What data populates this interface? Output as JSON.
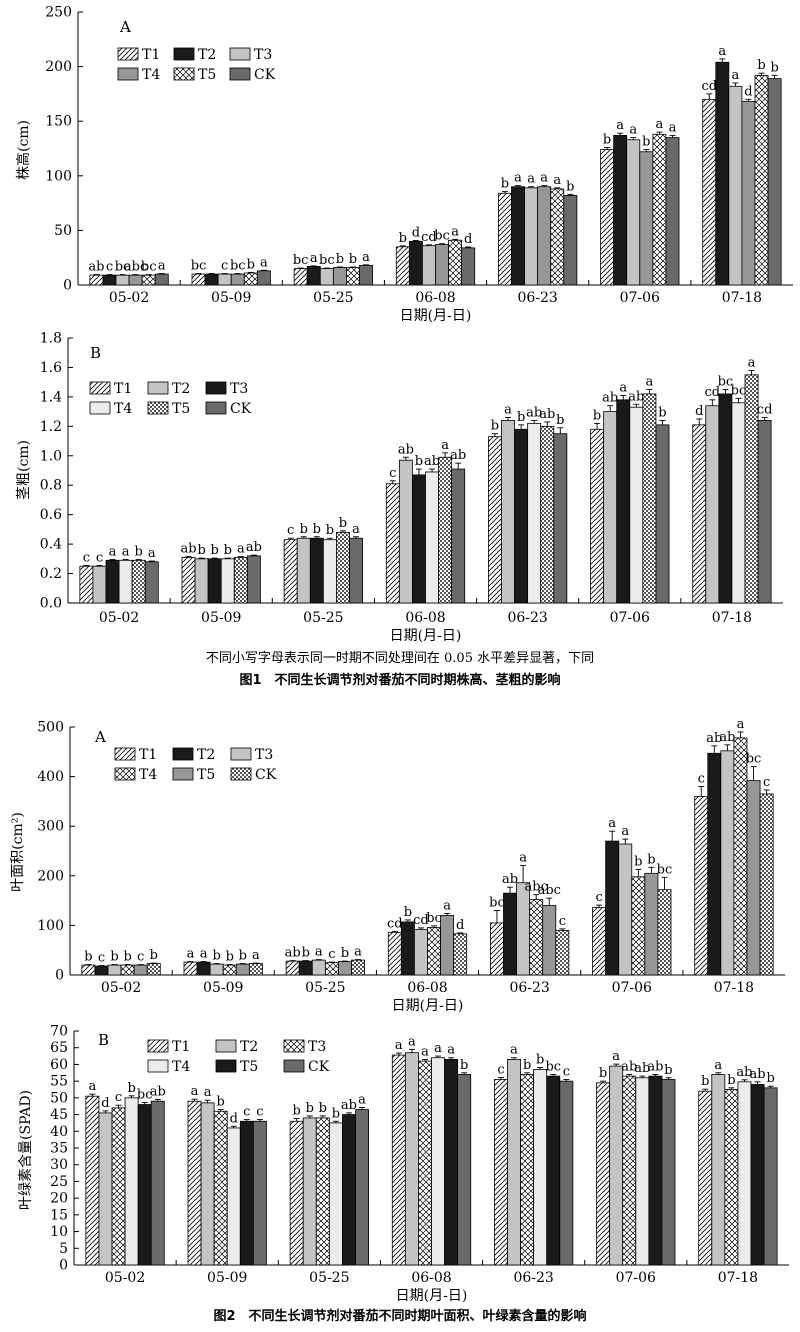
{
  "figure1": {
    "title": "图1　不同生长调节剂对番茄不同时期株高、茎粗的影响",
    "note": "不同小写字母表示同一时期不同处理间在 0.05 水平差异显著，下同"
  },
  "figure2": {
    "title": "图2　不同生长调节剂对番茄不同时期叶面积、叶绿素含量的影响"
  },
  "chart_data": [
    {
      "type": "bar",
      "panel": "A",
      "ylabel": "株高(cm)",
      "xlabel": "日期(月-日)",
      "categories": [
        "05-02",
        "05-09",
        "05-25",
        "06-08",
        "06-23",
        "07-06",
        "07-18"
      ],
      "ylim": [
        0,
        250
      ],
      "yticks": [
        0,
        50,
        100,
        150,
        200,
        250
      ],
      "legend_cols": 3,
      "series": [
        {
          "name": "T1",
          "pattern": "diag",
          "values": [
            9,
            10,
            15,
            35,
            84,
            124,
            170
          ],
          "errors": [
            0.5,
            0.5,
            0.5,
            0.8,
            1.5,
            2,
            5
          ],
          "letters": [
            "ab",
            "bc",
            "bc",
            "b",
            "b",
            "b",
            "cd"
          ]
        },
        {
          "name": "T2",
          "pattern": "black",
          "values": [
            9,
            10,
            17,
            40,
            90,
            137,
            204
          ],
          "errors": [
            0.5,
            0.5,
            0.5,
            0.8,
            1,
            2,
            3
          ],
          "letters": [
            "c",
            "",
            "a",
            "d",
            "a",
            "a",
            "a"
          ]
        },
        {
          "name": "T3",
          "pattern": "lightgray",
          "values": [
            9,
            10,
            15,
            36,
            89,
            133,
            182
          ],
          "errors": [
            0.5,
            0.5,
            0.5,
            0.8,
            1,
            2,
            3
          ],
          "letters": [
            "bc",
            "c",
            "bc",
            "cd",
            "a",
            "a",
            "a"
          ]
        },
        {
          "name": "T4",
          "pattern": "gray",
          "values": [
            9,
            10,
            16,
            37,
            90,
            122,
            168
          ],
          "errors": [
            0.5,
            0.5,
            0.5,
            0.8,
            1,
            2,
            2
          ],
          "letters": [
            "abc",
            "bc",
            "b",
            "bc",
            "a",
            "b",
            "d"
          ]
        },
        {
          "name": "T5",
          "pattern": "cross",
          "values": [
            9,
            11,
            16,
            41,
            88,
            138,
            192
          ],
          "errors": [
            0.5,
            0.5,
            0.5,
            0.8,
            1,
            2,
            2
          ],
          "letters": [
            "bc",
            "b",
            "b",
            "a",
            "a",
            "a",
            "b"
          ]
        },
        {
          "name": "CK",
          "pattern": "darkgray",
          "values": [
            10,
            13,
            18,
            34,
            82,
            135,
            189
          ],
          "errors": [
            0.5,
            0.5,
            0.5,
            0.8,
            1,
            2,
            3
          ],
          "letters": [
            "a",
            "a",
            "a",
            "d",
            "b",
            "a",
            "b"
          ]
        }
      ]
    },
    {
      "type": "bar",
      "panel": "B",
      "ylabel": "茎粗(cm)",
      "xlabel": "日期(月-日)",
      "categories": [
        "05-02",
        "05-09",
        "05-25",
        "06-08",
        "06-23",
        "07-06",
        "07-18"
      ],
      "ylim": [
        0,
        1.8
      ],
      "yticks": [
        0,
        0.2,
        0.4,
        0.6,
        0.8,
        1.0,
        1.2,
        1.4,
        1.6,
        1.8
      ],
      "legend_cols": 3,
      "series": [
        {
          "name": "T1",
          "pattern": "diag",
          "values": [
            0.25,
            0.31,
            0.43,
            0.81,
            1.13,
            1.18,
            1.21
          ],
          "errors": [
            0.005,
            0.005,
            0.01,
            0.02,
            0.02,
            0.04,
            0.04
          ],
          "letters": [
            "c",
            "ab",
            "c",
            "c",
            "b",
            "b",
            "d"
          ]
        },
        {
          "name": "T2",
          "pattern": "lightgray",
          "values": [
            0.25,
            0.3,
            0.44,
            0.97,
            1.24,
            1.3,
            1.34
          ],
          "errors": [
            0.005,
            0.005,
            0.01,
            0.02,
            0.02,
            0.04,
            0.04
          ],
          "letters": [
            "c",
            "b",
            "b",
            "ab",
            "a",
            "ab",
            "cd"
          ]
        },
        {
          "name": "T3",
          "pattern": "black",
          "values": [
            0.29,
            0.3,
            0.44,
            0.87,
            1.18,
            1.38,
            1.42
          ],
          "errors": [
            0.005,
            0.005,
            0.01,
            0.04,
            0.03,
            0.03,
            0.03
          ],
          "letters": [
            "a",
            "b",
            "b",
            "b",
            "b",
            "a",
            "bc"
          ]
        },
        {
          "name": "T4",
          "pattern": "white",
          "values": [
            0.29,
            0.3,
            0.43,
            0.89,
            1.22,
            1.33,
            1.36
          ],
          "errors": [
            0.005,
            0.005,
            0.01,
            0.02,
            0.02,
            0.02,
            0.03
          ],
          "letters": [
            "a",
            "b",
            "b",
            "ab",
            "ab",
            "ab",
            "bc"
          ]
        },
        {
          "name": "T5",
          "pattern": "checker",
          "values": [
            0.29,
            0.31,
            0.48,
            0.99,
            1.2,
            1.42,
            1.55
          ],
          "errors": [
            0.005,
            0.005,
            0.01,
            0.03,
            0.03,
            0.03,
            0.03
          ],
          "letters": [
            "b",
            "a",
            "b",
            "a",
            "ab",
            "a",
            "a"
          ]
        },
        {
          "name": "CK",
          "pattern": "darkgray",
          "values": [
            0.28,
            0.32,
            0.44,
            0.91,
            1.15,
            1.21,
            1.24
          ],
          "errors": [
            0.005,
            0.005,
            0.01,
            0.04,
            0.04,
            0.03,
            0.02
          ],
          "letters": [
            "a",
            "ab",
            "a",
            "ab",
            "b",
            "b",
            "cd"
          ]
        }
      ]
    },
    {
      "type": "bar",
      "panel": "A",
      "ylabel": "叶面积(cm²)",
      "xlabel": "日期(月-日)",
      "categories": [
        "05-02",
        "05-09",
        "05-25",
        "06-08",
        "06-23",
        "07-06",
        "07-18"
      ],
      "ylim": [
        0,
        500
      ],
      "yticks": [
        0,
        100,
        200,
        300,
        400,
        500
      ],
      "legend_cols": 3,
      "series": [
        {
          "name": "T1",
          "pattern": "diag",
          "values": [
            20,
            26,
            28,
            86,
            105,
            136,
            360
          ],
          "errors": [
            1,
            1,
            1,
            2,
            25,
            5,
            20
          ],
          "letters": [
            "b",
            "a",
            "ab",
            "cd",
            "bc",
            "c",
            "c"
          ]
        },
        {
          "name": "T2",
          "pattern": "black",
          "values": [
            18,
            26,
            28,
            107,
            165,
            270,
            447
          ],
          "errors": [
            1,
            1,
            1,
            4,
            12,
            20,
            15
          ],
          "letters": [
            "c",
            "a",
            "b",
            "b",
            "ab",
            "a",
            "ab"
          ]
        },
        {
          "name": "T3",
          "pattern": "lightgray",
          "values": [
            20,
            22,
            30,
            92,
            186,
            264,
            452
          ],
          "errors": [
            1,
            1,
            1,
            3,
            35,
            10,
            12
          ],
          "letters": [
            "b",
            "b",
            "a",
            "cd",
            "a",
            "a",
            "ab"
          ]
        },
        {
          "name": "T4",
          "pattern": "cross",
          "values": [
            20,
            20,
            25,
            96,
            152,
            198,
            478
          ],
          "errors": [
            1,
            1,
            1,
            3,
            10,
            15,
            12
          ],
          "letters": [
            "b",
            "b",
            "c",
            "bc",
            "abc",
            "b",
            "a"
          ]
        },
        {
          "name": "T5",
          "pattern": "gray",
          "values": [
            20,
            22,
            27,
            120,
            140,
            205,
            392
          ],
          "errors": [
            1,
            1,
            1,
            4,
            15,
            12,
            28
          ],
          "letters": [
            "c",
            "b",
            "b",
            "a",
            "abc",
            "b",
            "bc"
          ]
        },
        {
          "name": "CK",
          "pattern": "checker",
          "values": [
            23,
            23,
            30,
            83,
            90,
            172,
            365
          ],
          "errors": [
            1,
            1,
            1,
            2,
            3,
            25,
            8
          ],
          "letters": [
            "b",
            "a",
            "a",
            "d",
            "c",
            "bc",
            "c"
          ]
        }
      ]
    },
    {
      "type": "bar",
      "panel": "B",
      "ylabel": "叶绿素含量(SPAD)",
      "xlabel": "日期(月-日)",
      "categories": [
        "05-02",
        "05-09",
        "05-25",
        "06-08",
        "06-23",
        "07-06",
        "07-18"
      ],
      "ylim": [
        0,
        70
      ],
      "yticks": [
        0,
        5,
        10,
        15,
        20,
        25,
        30,
        35,
        40,
        45,
        50,
        55,
        60,
        65,
        70
      ],
      "legend_cols": 3,
      "series": [
        {
          "name": "T1",
          "pattern": "diag",
          "values": [
            50.5,
            49,
            43,
            62.8,
            55.5,
            54.5,
            52
          ],
          "errors": [
            0.6,
            0.6,
            0.8,
            0.6,
            0.6,
            0.5,
            0.6
          ],
          "letters": [
            "a",
            "a",
            "b",
            "a",
            "c",
            "b",
            "b"
          ]
        },
        {
          "name": "T2",
          "pattern": "lightgray",
          "values": [
            45.5,
            48.5,
            44,
            63.5,
            61.5,
            59.5,
            57
          ],
          "errors": [
            0.6,
            0.8,
            0.6,
            1,
            0.5,
            0.6,
            0.5
          ],
          "letters": [
            "d",
            "a",
            "b",
            "a",
            "a",
            "a",
            "a"
          ]
        },
        {
          "name": "T3",
          "pattern": "cross",
          "values": [
            47,
            46,
            44,
            61,
            57,
            56.5,
            52.5
          ],
          "errors": [
            0.8,
            0.5,
            0.6,
            0.5,
            0.5,
            0.5,
            0.5
          ],
          "letters": [
            "c",
            "b",
            "b",
            "a",
            "b",
            "ab",
            "b"
          ]
        },
        {
          "name": "T4",
          "pattern": "white",
          "values": [
            50,
            41,
            42.5,
            62,
            58.5,
            56,
            54.8
          ],
          "errors": [
            0.6,
            0.5,
            0.5,
            0.5,
            0.6,
            0.5,
            0.6
          ],
          "letters": [
            "b",
            "d",
            "b",
            "a",
            "b",
            "ab",
            "ab"
          ]
        },
        {
          "name": "T5",
          "pattern": "black",
          "values": [
            48,
            43,
            45,
            61.5,
            56.5,
            56.5,
            54
          ],
          "errors": [
            0.6,
            0.5,
            0.5,
            0.5,
            0.5,
            0.5,
            0.8
          ],
          "letters": [
            "bc",
            "c",
            "ab",
            "a",
            "bc",
            "ab",
            "ab"
          ]
        },
        {
          "name": "CK",
          "pattern": "darkgray",
          "values": [
            49,
            43,
            46.5,
            57,
            55,
            55.5,
            53
          ],
          "errors": [
            0.5,
            0.5,
            0.6,
            0.5,
            0.5,
            0.5,
            0.5
          ],
          "letters": [
            "ab",
            "c",
            "a",
            "b",
            "c",
            "b",
            "b"
          ]
        }
      ]
    }
  ]
}
